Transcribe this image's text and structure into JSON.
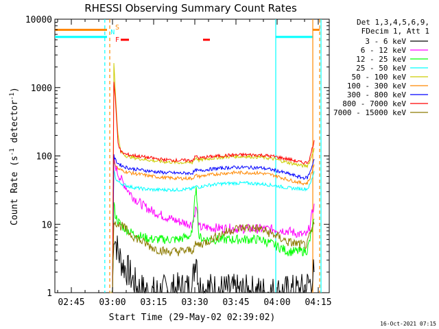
{
  "chart_data": {
    "type": "line",
    "title": "RHESSI Observing Summary Count Rates",
    "xlabel": "Start Time (29-May-02 02:39:02)",
    "ylabel_main": "Count Rate (s",
    "ylabel_exp1": "-1",
    "ylabel_mid": " detector",
    "ylabel_exp2": "-1",
    "ylabel_end": ")",
    "ylog": true,
    "ylim": [
      1,
      10000
    ],
    "x_tick_labels": [
      "02:45",
      "03:00",
      "03:15",
      "03:30",
      "03:45",
      "04:00",
      "04:15"
    ],
    "x_tick_minutes": [
      6,
      21,
      36,
      51,
      66,
      81,
      96
    ],
    "xlim_minutes": [
      0,
      100
    ],
    "y_tick_labels": [
      "1",
      "10",
      "100",
      "1000",
      "10000"
    ],
    "y_tick_values": [
      1,
      10,
      100,
      1000,
      10000
    ],
    "legend_header": [
      "Det 1,3,4,5,6,9,",
      "FDecim 1, Att 1"
    ],
    "series": [
      {
        "name": "3 - 6 keV",
        "color": "#000000",
        "points": [
          [
            20,
            1
          ],
          [
            21,
            1
          ],
          [
            21.5,
            8
          ],
          [
            22,
            6
          ],
          [
            23,
            4
          ],
          [
            24,
            3
          ],
          [
            25,
            2.5
          ],
          [
            26,
            2.2
          ],
          [
            27,
            2
          ],
          [
            28,
            1.6
          ],
          [
            29,
            1.4
          ],
          [
            30,
            1.2
          ],
          [
            32,
            1.1
          ],
          [
            35,
            1
          ],
          [
            50,
            1.2
          ],
          [
            51.5,
            4
          ],
          [
            52.5,
            1.2
          ],
          [
            60,
            1.1
          ],
          [
            80,
            1
          ],
          [
            90,
            1.1
          ],
          [
            93,
            1.4
          ],
          [
            94.5,
            2
          ]
        ]
      },
      {
        "name": "6 - 12 keV",
        "color": "#ff00ff",
        "points": [
          [
            20,
            1
          ],
          [
            21,
            1
          ],
          [
            21.5,
            85
          ],
          [
            23,
            55
          ],
          [
            25,
            40
          ],
          [
            27,
            30
          ],
          [
            29,
            24
          ],
          [
            32,
            19
          ],
          [
            35,
            16
          ],
          [
            40,
            13
          ],
          [
            45,
            11
          ],
          [
            50,
            10
          ],
          [
            51.5,
            18
          ],
          [
            52.5,
            9
          ],
          [
            55,
            9
          ],
          [
            60,
            8.8
          ],
          [
            70,
            8.6
          ],
          [
            80,
            8.5
          ],
          [
            85,
            8
          ],
          [
            90,
            7
          ],
          [
            92,
            7
          ],
          [
            93,
            10
          ],
          [
            94.5,
            20
          ]
        ]
      },
      {
        "name": "12 - 25 keV",
        "color": "#00ff00",
        "points": [
          [
            20,
            1
          ],
          [
            21,
            1
          ],
          [
            21.5,
            20
          ],
          [
            22,
            14
          ],
          [
            23,
            11
          ],
          [
            25,
            9
          ],
          [
            28,
            7.5
          ],
          [
            32,
            6.5
          ],
          [
            36,
            6
          ],
          [
            40,
            6
          ],
          [
            45,
            6
          ],
          [
            50,
            7
          ],
          [
            51.5,
            40
          ],
          [
            52.5,
            6.5
          ],
          [
            55,
            6
          ],
          [
            60,
            6
          ],
          [
            65,
            6
          ],
          [
            70,
            6
          ],
          [
            75,
            6
          ],
          [
            80,
            5
          ],
          [
            85,
            4
          ],
          [
            90,
            4
          ],
          [
            92,
            4.2
          ],
          [
            93,
            6
          ],
          [
            94.5,
            12
          ]
        ]
      },
      {
        "name": "25 - 50 keV",
        "color": "#00ffff",
        "points": [
          [
            20,
            1
          ],
          [
            21,
            1
          ],
          [
            21.5,
            65
          ],
          [
            22,
            48
          ],
          [
            23,
            42
          ],
          [
            25,
            38
          ],
          [
            28,
            35
          ],
          [
            32,
            33
          ],
          [
            36,
            32
          ],
          [
            40,
            32
          ],
          [
            45,
            32
          ],
          [
            50,
            33
          ],
          [
            51.5,
            36
          ],
          [
            52.5,
            35
          ],
          [
            55,
            37
          ],
          [
            60,
            39
          ],
          [
            65,
            40
          ],
          [
            70,
            40
          ],
          [
            75,
            39
          ],
          [
            80,
            37
          ],
          [
            85,
            34
          ],
          [
            90,
            33
          ],
          [
            92,
            33
          ],
          [
            93,
            38
          ],
          [
            94.5,
            60
          ]
        ]
      },
      {
        "name": "50 - 100 keV",
        "color": "#cccc00",
        "points": [
          [
            20,
            1
          ],
          [
            21,
            1
          ],
          [
            21.5,
            2400
          ],
          [
            22,
            900
          ],
          [
            23,
            200
          ],
          [
            24,
            115
          ],
          [
            26,
            100
          ],
          [
            30,
            92
          ],
          [
            36,
            85
          ],
          [
            40,
            82
          ],
          [
            45,
            80
          ],
          [
            50,
            80
          ],
          [
            51.5,
            95
          ],
          [
            52.5,
            86
          ],
          [
            55,
            90
          ],
          [
            60,
            95
          ],
          [
            65,
            98
          ],
          [
            70,
            98
          ],
          [
            75,
            96
          ],
          [
            80,
            90
          ],
          [
            85,
            80
          ],
          [
            90,
            72
          ],
          [
            92,
            72
          ],
          [
            93,
            85
          ],
          [
            94.5,
            130
          ]
        ]
      },
      {
        "name": "100 - 300 keV",
        "color": "#ff8800",
        "points": [
          [
            20,
            1
          ],
          [
            21,
            1
          ],
          [
            21.5,
            90
          ],
          [
            22,
            75
          ],
          [
            23,
            65
          ],
          [
            25,
            60
          ],
          [
            28,
            56
          ],
          [
            32,
            53
          ],
          [
            36,
            50
          ],
          [
            40,
            48
          ],
          [
            45,
            47
          ],
          [
            50,
            47
          ],
          [
            51.5,
            52
          ],
          [
            52.5,
            50
          ],
          [
            55,
            52
          ],
          [
            60,
            55
          ],
          [
            65,
            57
          ],
          [
            70,
            57
          ],
          [
            75,
            56
          ],
          [
            80,
            52
          ],
          [
            85,
            45
          ],
          [
            90,
            40
          ],
          [
            92,
            40
          ],
          [
            93,
            48
          ],
          [
            94.5,
            75
          ]
        ]
      },
      {
        "name": "300 - 800 keV",
        "color": "#0000ff",
        "points": [
          [
            20,
            1
          ],
          [
            21,
            1
          ],
          [
            21.5,
            100
          ],
          [
            22,
            88
          ],
          [
            23,
            78
          ],
          [
            25,
            70
          ],
          [
            28,
            65
          ],
          [
            32,
            62
          ],
          [
            36,
            59
          ],
          [
            40,
            57
          ],
          [
            45,
            56
          ],
          [
            50,
            56
          ],
          [
            51.5,
            62
          ],
          [
            52.5,
            60
          ],
          [
            55,
            63
          ],
          [
            60,
            66
          ],
          [
            65,
            68
          ],
          [
            70,
            68
          ],
          [
            75,
            67
          ],
          [
            80,
            62
          ],
          [
            85,
            55
          ],
          [
            90,
            48
          ],
          [
            92,
            48
          ],
          [
            93,
            58
          ],
          [
            94.5,
            90
          ]
        ]
      },
      {
        "name": "800 - 7000 keV",
        "color": "#ff0000",
        "points": [
          [
            20,
            1
          ],
          [
            21,
            1
          ],
          [
            21.5,
            1200
          ],
          [
            22,
            700
          ],
          [
            23,
            160
          ],
          [
            24,
            115
          ],
          [
            26,
            105
          ],
          [
            30,
            100
          ],
          [
            36,
            92
          ],
          [
            40,
            88
          ],
          [
            45,
            86
          ],
          [
            50,
            86
          ],
          [
            51.5,
            100
          ],
          [
            52.5,
            92
          ],
          [
            55,
            96
          ],
          [
            60,
            100
          ],
          [
            65,
            103
          ],
          [
            70,
            104
          ],
          [
            75,
            103
          ],
          [
            80,
            98
          ],
          [
            85,
            90
          ],
          [
            90,
            80
          ],
          [
            92,
            80
          ],
          [
            93,
            95
          ],
          [
            94.5,
            170
          ]
        ]
      },
      {
        "name": "7000 - 15000 keV",
        "color": "#8c7a00",
        "points": [
          [
            20,
            1
          ],
          [
            21,
            1
          ],
          [
            21.5,
            12
          ],
          [
            22,
            11
          ],
          [
            23,
            10
          ],
          [
            25,
            9
          ],
          [
            28,
            7
          ],
          [
            32,
            5.5
          ],
          [
            36,
            4.5
          ],
          [
            40,
            4
          ],
          [
            45,
            4
          ],
          [
            50,
            4.2
          ],
          [
            51.5,
            5
          ],
          [
            52.5,
            5
          ],
          [
            55,
            5.5
          ],
          [
            60,
            7
          ],
          [
            65,
            8.5
          ],
          [
            70,
            9
          ],
          [
            75,
            8.5
          ],
          [
            80,
            7
          ],
          [
            85,
            5.5
          ],
          [
            90,
            5
          ],
          [
            92,
            5
          ],
          [
            93,
            7
          ],
          [
            94.5,
            10
          ]
        ]
      }
    ],
    "saa_level": [
      {
        "x": [
          0,
          19
        ],
        "value": 5500,
        "color": "#00ffff"
      },
      {
        "x": [
          80.5,
          94
        ],
        "value": 5500,
        "color": "#00ffff"
      }
    ],
    "orange_level": [
      {
        "x": [
          0,
          19
        ],
        "value": 7000,
        "color": "#ff8800"
      },
      {
        "x": [
          94,
          96.5
        ],
        "value": 7000,
        "color": "#ff8800"
      }
    ],
    "vlines": [
      {
        "x": 18.2,
        "color": "#00ffff",
        "dash": true
      },
      {
        "x": 20.0,
        "color": "#ff8800",
        "dash": true
      },
      {
        "x": 80.5,
        "color": "#00ffff",
        "dash": false
      },
      {
        "x": 94.0,
        "color": "#ff8800",
        "dash": false
      },
      {
        "x": 96.5,
        "color": "#ff8800",
        "dash": true
      },
      {
        "x": 97.0,
        "color": "#00ffff",
        "dash": false
      }
    ],
    "flare_bars": [
      [
        24,
        27
      ],
      [
        54,
        56.5
      ]
    ],
    "flare_bar_color": "#ff0000",
    "flag_labels": [
      {
        "text": "S",
        "x": 21,
        "color": "#ff8800"
      },
      {
        "text": "N",
        "x": 19.3,
        "color": "#00ffff"
      },
      {
        "text": "F",
        "x": 21,
        "color": "#ff0000"
      }
    ],
    "grid": false,
    "legend_placement": "right"
  },
  "timestamp": "16-Oct-2021 07:15"
}
